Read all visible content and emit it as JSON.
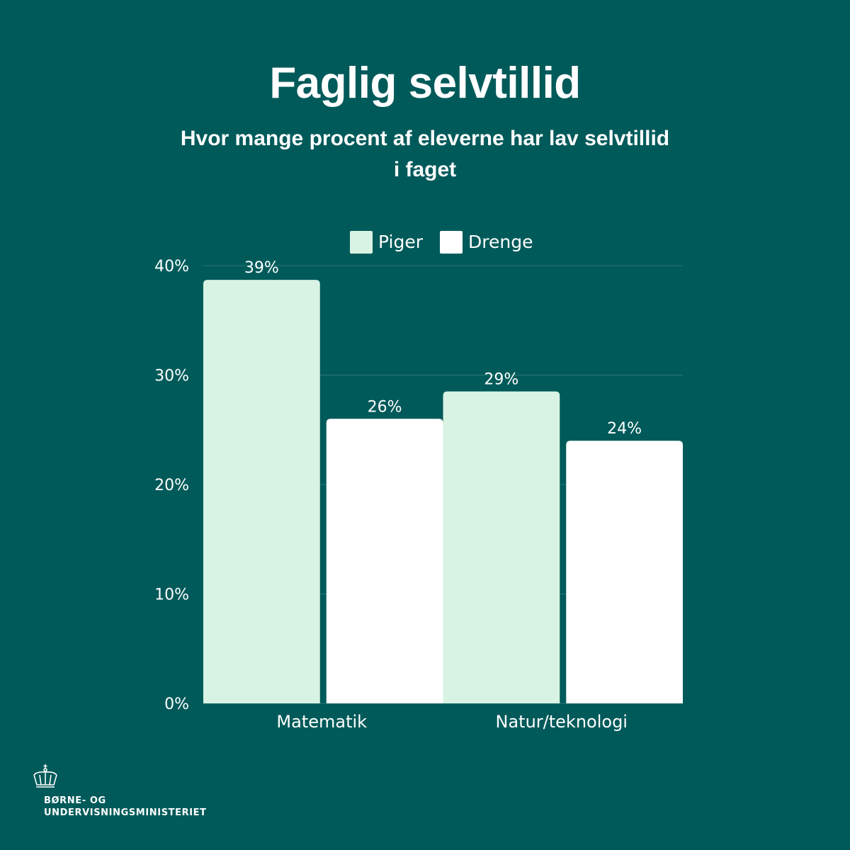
{
  "title": "Faglig selvtillid",
  "subtitle": "Hvor mange procent af eleverne har lav selvtillid i faget",
  "chart_data": {
    "type": "bar",
    "categories": [
      "Matematik",
      "Natur/teknologi"
    ],
    "series": [
      {
        "name": "Piger",
        "values": [
          38.7,
          28.5
        ],
        "labels": [
          "39%",
          "29%"
        ],
        "color": "#d8f3e3"
      },
      {
        "name": "Drenge",
        "values": [
          26.0,
          24.0
        ],
        "labels": [
          "26%",
          "24%"
        ],
        "color": "#ffffff"
      }
    ],
    "ylim": [
      0,
      40
    ],
    "yticks": [
      0,
      10,
      20,
      30,
      40
    ],
    "ytick_labels": [
      "0%",
      "10%",
      "20%",
      "30%",
      "40%"
    ],
    "grid": true,
    "legend_position": "top"
  },
  "logo": {
    "line1": "BØRNE- OG",
    "line2": "UNDERVISNINGSMINISTERIET"
  },
  "colors": {
    "background": "#015a5a",
    "gridline": "#2a7676"
  }
}
